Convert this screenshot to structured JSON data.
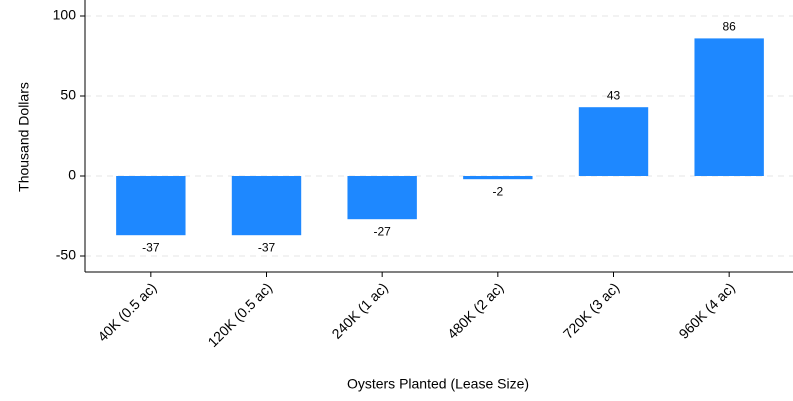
{
  "chart_data": {
    "type": "bar",
    "x_label": "Oysters Planted (Lease Size)",
    "y_label": "Thousand Dollars",
    "categories": [
      "40K (0.5 ac)",
      "120K (0.5 ac)",
      "240K (1 ac)",
      "480K (2 ac)",
      "720K (3 ac)",
      "960K (4 ac)"
    ],
    "values": [
      -37,
      -37,
      -27,
      -2,
      43,
      86
    ],
    "color": "#1e88ff",
    "ylim": [
      -60,
      110
    ],
    "yticks": [
      -50,
      0,
      50,
      100
    ],
    "grid": true
  }
}
